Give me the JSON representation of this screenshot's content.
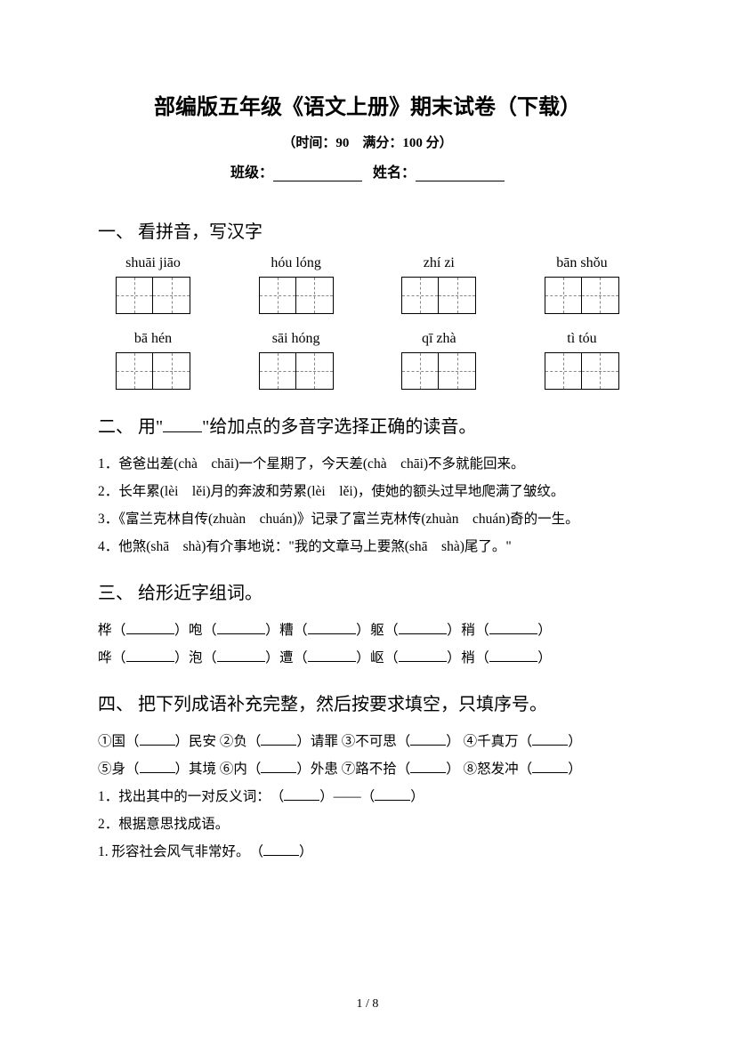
{
  "header": {
    "title": "部编版五年级《语文上册》期末试卷（下载）",
    "subtitle": "（时间：90　满分：100 分）",
    "class_label": "班级：",
    "name_label": "姓名："
  },
  "section1": {
    "title": "一、 看拼音，写汉字",
    "row1": [
      "shuāi jiāo",
      "hóu lóng",
      "zhí zi",
      "bān shǒu"
    ],
    "row2": [
      "bā hén",
      "sāi hóng",
      "qī zhà",
      "tì tóu"
    ]
  },
  "section2": {
    "title_pre": "二、 用\"",
    "title_post": "\"给加点的多音字选择正确的读音。",
    "q1": "1．爸爸出差(chà　chāi)一个星期了，今天差(chà　chāi)不多就能回来。",
    "q2": "2．长年累(lèi　lěi)月的奔波和劳累(lèi　lěi)，使她的额头过早地爬满了皱纹。",
    "q3": "3．《富兰克林自传(zhuàn　chuán)》记录了富兰克林传(zhuàn　chuán)奇的一生。",
    "q4": "4．他煞(shā　shà)有介事地说：\"我的文章马上要煞(shā　shà)尾了。\""
  },
  "section3": {
    "title": "三、 给形近字组词。",
    "row1_chars": [
      "桦",
      "咆",
      "糟",
      "躯",
      "稍"
    ],
    "row2_chars": [
      "哗",
      "泡",
      "遭",
      "岖",
      "梢"
    ]
  },
  "section4": {
    "title": "四、 把下列成语补充完整，然后按要求填空，只填序号。",
    "line1": {
      "p1": "①国（",
      "p2": "）民安  ②负（",
      "p3": "）请罪  ③不可思（",
      "p4": "）  ④千真万（",
      "p5": "）"
    },
    "line2": {
      "p1": "⑤身（",
      "p2": "）其境  ⑥内（",
      "p3": "）外患  ⑦路不拾（",
      "p4": "）  ⑧怒发冲（",
      "p5": "）"
    },
    "q1": {
      "pre": "1．找出其中的一对反义词：　（",
      "mid": "）——（",
      "post": "）"
    },
    "q2": "2．根据意思找成语。",
    "q2_1": {
      "pre": "1. 形容社会风气非常好。　（",
      "post": "）"
    }
  },
  "footer": {
    "page": "1 / 8"
  }
}
